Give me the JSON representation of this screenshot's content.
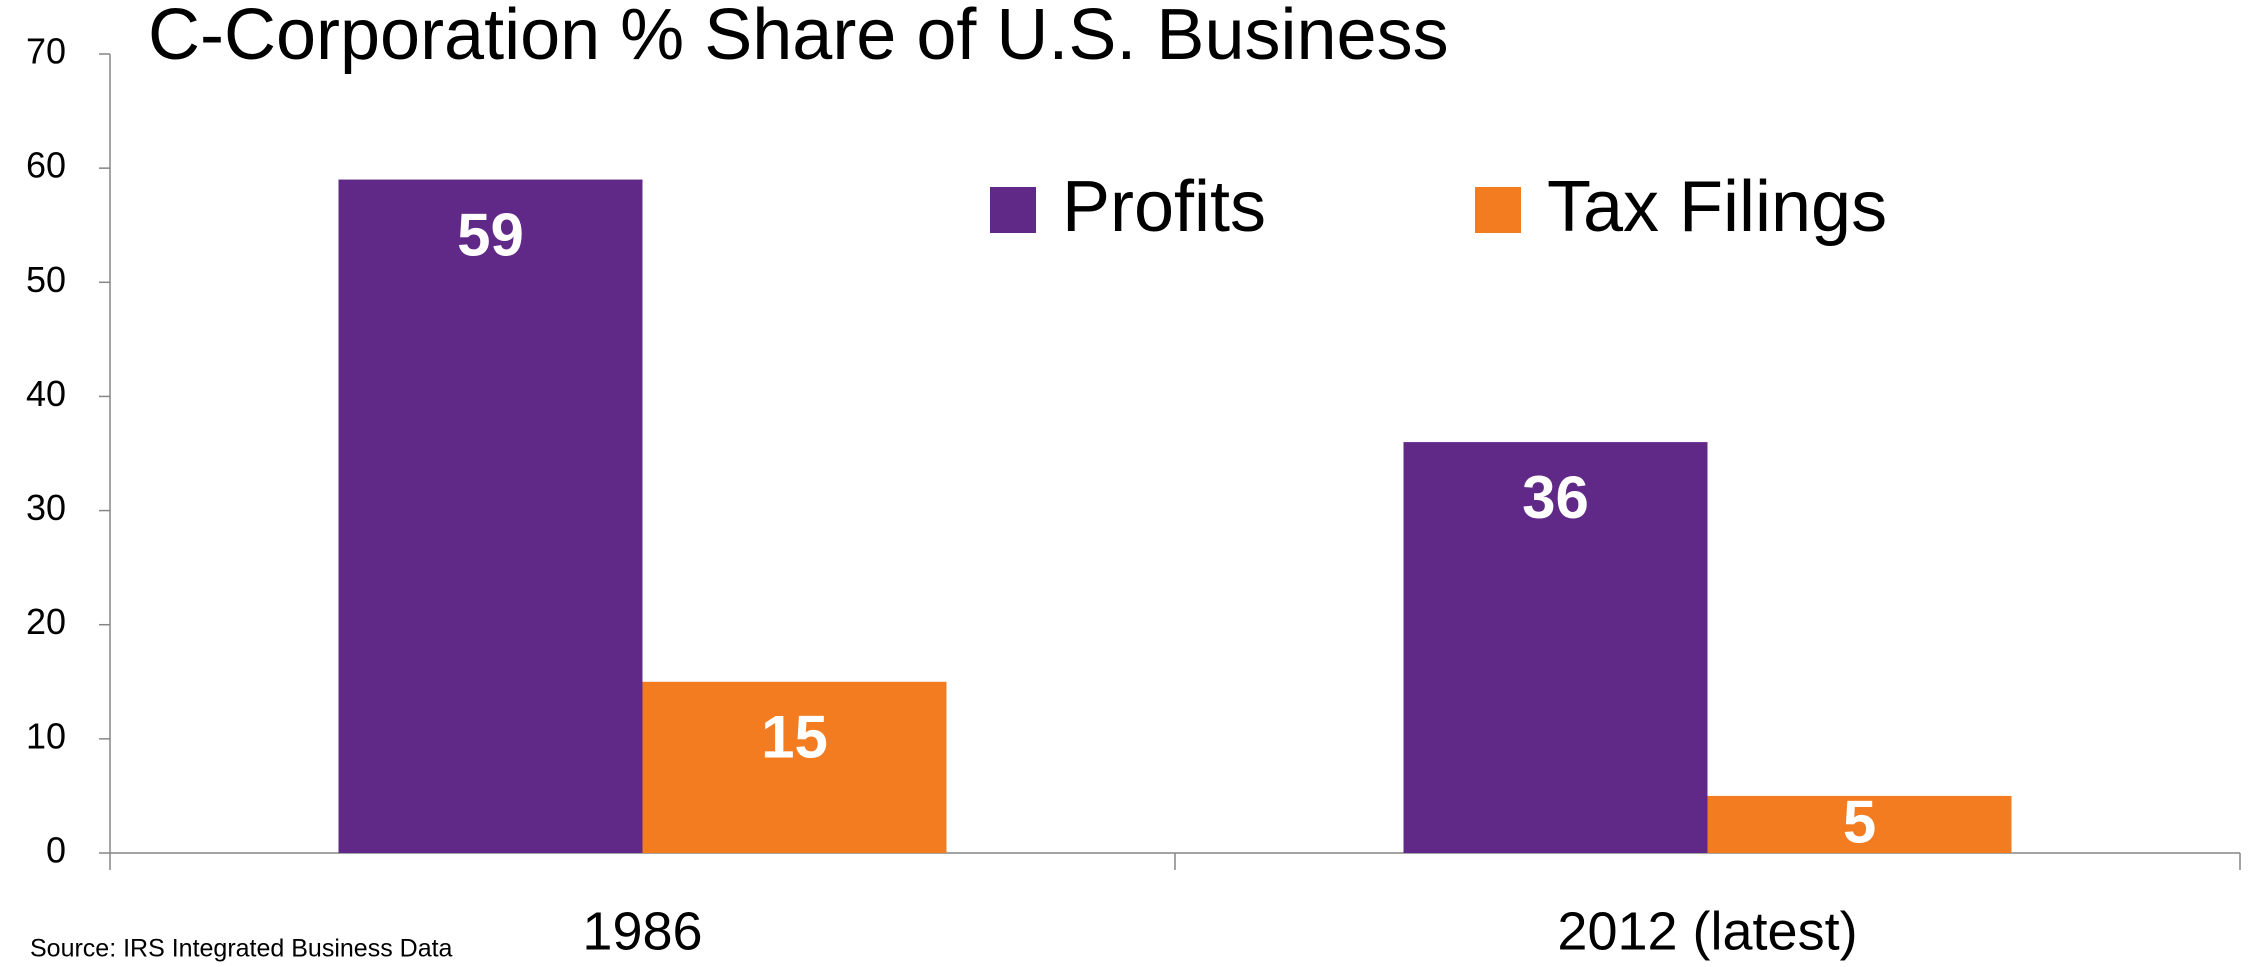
{
  "chart_data": {
    "type": "bar",
    "title": "C-Corporation % Share of U.S. Business",
    "categories": [
      "1986",
      "2012 (latest)"
    ],
    "series": [
      {
        "name": "Profits",
        "color": "#612987",
        "values": [
          59,
          36
        ]
      },
      {
        "name": "Tax Filings",
        "color": "#f47c20",
        "values": [
          15,
          5
        ]
      }
    ],
    "ylim": [
      0,
      70
    ],
    "yticks": [
      0,
      10,
      20,
      30,
      40,
      50,
      60,
      70
    ],
    "grid": false,
    "data_labels": true,
    "source": "Source: IRS Integrated Business Data"
  }
}
